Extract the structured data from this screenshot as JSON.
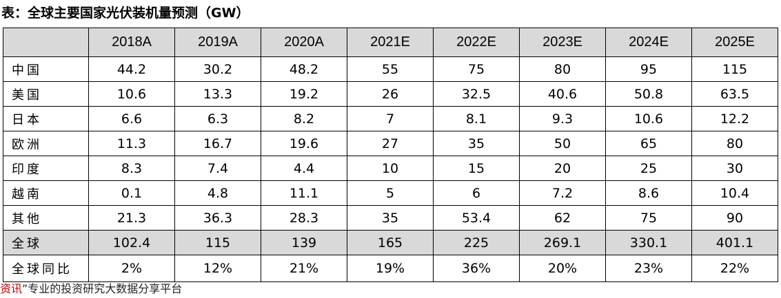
{
  "title": "表：全球主要国家光伏装机量预测（GW）",
  "table": {
    "corner": "",
    "columns": [
      "2018A",
      "2019A",
      "2020A",
      "2021E",
      "2022E",
      "2023E",
      "2024E",
      "2025E"
    ],
    "rows": [
      {
        "label": "中国",
        "values": [
          "44.2",
          "30.2",
          "48.2",
          "55",
          "75",
          "80",
          "95",
          "115"
        ]
      },
      {
        "label": "美国",
        "values": [
          "10.6",
          "13.3",
          "19.2",
          "26",
          "32.5",
          "40.6",
          "50.8",
          "63.5"
        ]
      },
      {
        "label": "日本",
        "values": [
          "6.6",
          "6.3",
          "8.2",
          "7",
          "8.1",
          "9.3",
          "10.6",
          "12.2"
        ]
      },
      {
        "label": "欧洲",
        "values": [
          "11.3",
          "16.7",
          "19.6",
          "27",
          "35",
          "50",
          "65",
          "80"
        ]
      },
      {
        "label": "印度",
        "values": [
          "8.3",
          "7.4",
          "4.4",
          "10",
          "15",
          "20",
          "25",
          "30"
        ]
      },
      {
        "label": "越南",
        "values": [
          "0.1",
          "4.8",
          "11.1",
          "5",
          "6",
          "7.2",
          "8.6",
          "10.4"
        ]
      },
      {
        "label": "其他",
        "values": [
          "21.3",
          "36.3",
          "28.3",
          "35",
          "53.4",
          "62",
          "75",
          "90"
        ]
      },
      {
        "label": "全球",
        "values": [
          "102.4",
          "115",
          "139",
          "165",
          "225",
          "269.1",
          "330.1",
          "401.1"
        ]
      },
      {
        "label": "全球同比",
        "values": [
          "2%",
          "12%",
          "21%",
          "19%",
          "36%",
          "20%",
          "23%",
          "22%"
        ]
      }
    ]
  },
  "footer": {
    "source": "资讯",
    "text": "”专业的投资研究大数据分享平台"
  },
  "colors": {
    "header_bg": "#d9d9d9",
    "total_bg": "#d9d9d9",
    "source_red": "#c00000"
  }
}
